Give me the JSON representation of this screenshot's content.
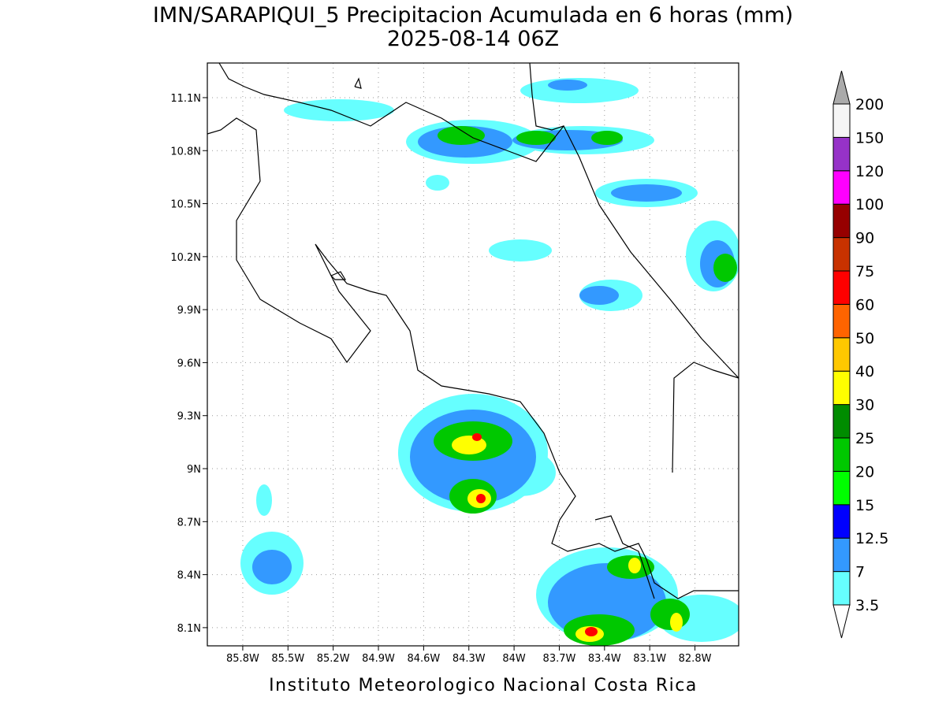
{
  "title": "IMN/SARAPIQUI_5 Precipitacion Acumulada en 6 horas (mm)",
  "subtitle": "2025-08-14 06Z",
  "footer": "Instituto Meteorologico Nacional Costa Rica",
  "map": {
    "xlim": [
      -86.035,
      -82.51
    ],
    "ylim": [
      7.997,
      11.296
    ],
    "lon_ticks": [
      {
        "value": -85.8,
        "label": "85.8W"
      },
      {
        "value": -85.5,
        "label": "85.5W"
      },
      {
        "value": -85.2,
        "label": "85.2W"
      },
      {
        "value": -84.9,
        "label": "84.9W"
      },
      {
        "value": -84.6,
        "label": "84.6W"
      },
      {
        "value": -84.3,
        "label": "84.3W"
      },
      {
        "value": -84.0,
        "label": "84W"
      },
      {
        "value": -83.7,
        "label": "83.7W"
      },
      {
        "value": -83.4,
        "label": "83.4W"
      },
      {
        "value": -83.1,
        "label": "83.1W"
      },
      {
        "value": -82.8,
        "label": "82.8W"
      }
    ],
    "lat_ticks": [
      {
        "value": 8.1,
        "label": "8.1N"
      },
      {
        "value": 8.4,
        "label": "8.4N"
      },
      {
        "value": 8.7,
        "label": "8.7N"
      },
      {
        "value": 9.0,
        "label": "9N"
      },
      {
        "value": 9.3,
        "label": "9.3N"
      },
      {
        "value": 9.6,
        "label": "9.6N"
      },
      {
        "value": 9.9,
        "label": "9.9N"
      },
      {
        "value": 10.2,
        "label": "10.2N"
      },
      {
        "value": 10.5,
        "label": "10.5N"
      },
      {
        "value": 10.8,
        "label": "10.8N"
      },
      {
        "value": 11.1,
        "label": "11.1N"
      }
    ]
  },
  "colorbar": {
    "levels": [
      3.5,
      7,
      12.5,
      15,
      20,
      25,
      30,
      40,
      50,
      60,
      75,
      90,
      100,
      120,
      150,
      200
    ],
    "colors": [
      "#ffffff",
      "#66ffff",
      "#3399ff",
      "#0000ff",
      "#00ff00",
      "#00c800",
      "#008c00",
      "#ffff00",
      "#ffc800",
      "#ff6400",
      "#ff0000",
      "#c83200",
      "#960000",
      "#ff00ff",
      "#9632c8",
      "#f5f5f5",
      "#aaaaaa"
    ]
  }
}
